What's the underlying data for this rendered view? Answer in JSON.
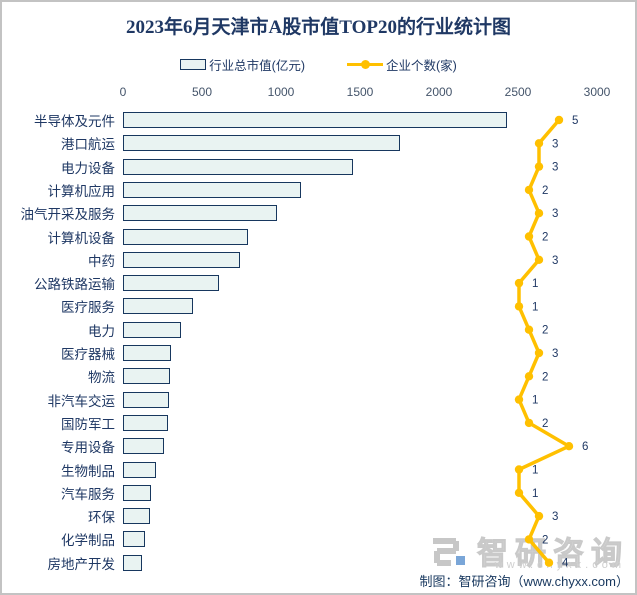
{
  "title": "2023年6月天津市A股市值TOP20的行业统计图",
  "legend": {
    "bar_label": "行业总市值(亿元)",
    "line_label": "企业个数(家)"
  },
  "chart_data": {
    "type": "bar",
    "orientation": "horizontal",
    "title": "2023年6月天津市A股市值TOP20的行业统计图",
    "categories": [
      "半导体及元件",
      "港口航运",
      "电力设备",
      "计算机应用",
      "油气开采及服务",
      "计算机设备",
      "中药",
      "公路铁路运输",
      "医疗服务",
      "电力",
      "医疗器械",
      "物流",
      "非汽车交运",
      "国防军工",
      "专用设备",
      "生物制品",
      "汽车服务",
      "环保",
      "化学制品",
      "房地产开发"
    ],
    "series": [
      {
        "name": "行业总市值(亿元)",
        "type": "bar",
        "values": [
          2430,
          1750,
          1455,
          1125,
          975,
          790,
          740,
          605,
          445,
          370,
          305,
          297,
          288,
          283,
          258,
          211,
          177,
          172,
          137,
          120
        ]
      },
      {
        "name": "企业个数(家)",
        "type": "line",
        "values": [
          5,
          3,
          3,
          2,
          3,
          2,
          3,
          1,
          1,
          2,
          3,
          2,
          1,
          2,
          6,
          1,
          1,
          3,
          2,
          4
        ]
      }
    ],
    "x_axis": {
      "ticks": [
        0,
        500,
        1000,
        1500,
        2000,
        2500,
        3000
      ],
      "min": 0,
      "max": 3000,
      "position": "top",
      "grid": false
    },
    "legend_position": "top"
  },
  "colors": {
    "bar_fill": "#E9F3F2",
    "bar_border": "#17375E",
    "line": "#FFC000",
    "text_navy": "#1F3864",
    "axis_text": "#44546A",
    "count_label": "#1F3864"
  },
  "watermark": {
    "brand": "智研咨询",
    "url": "www.chyxx.com"
  },
  "footer": {
    "credit": "制图：智研咨询（www.chyxx.com）"
  }
}
